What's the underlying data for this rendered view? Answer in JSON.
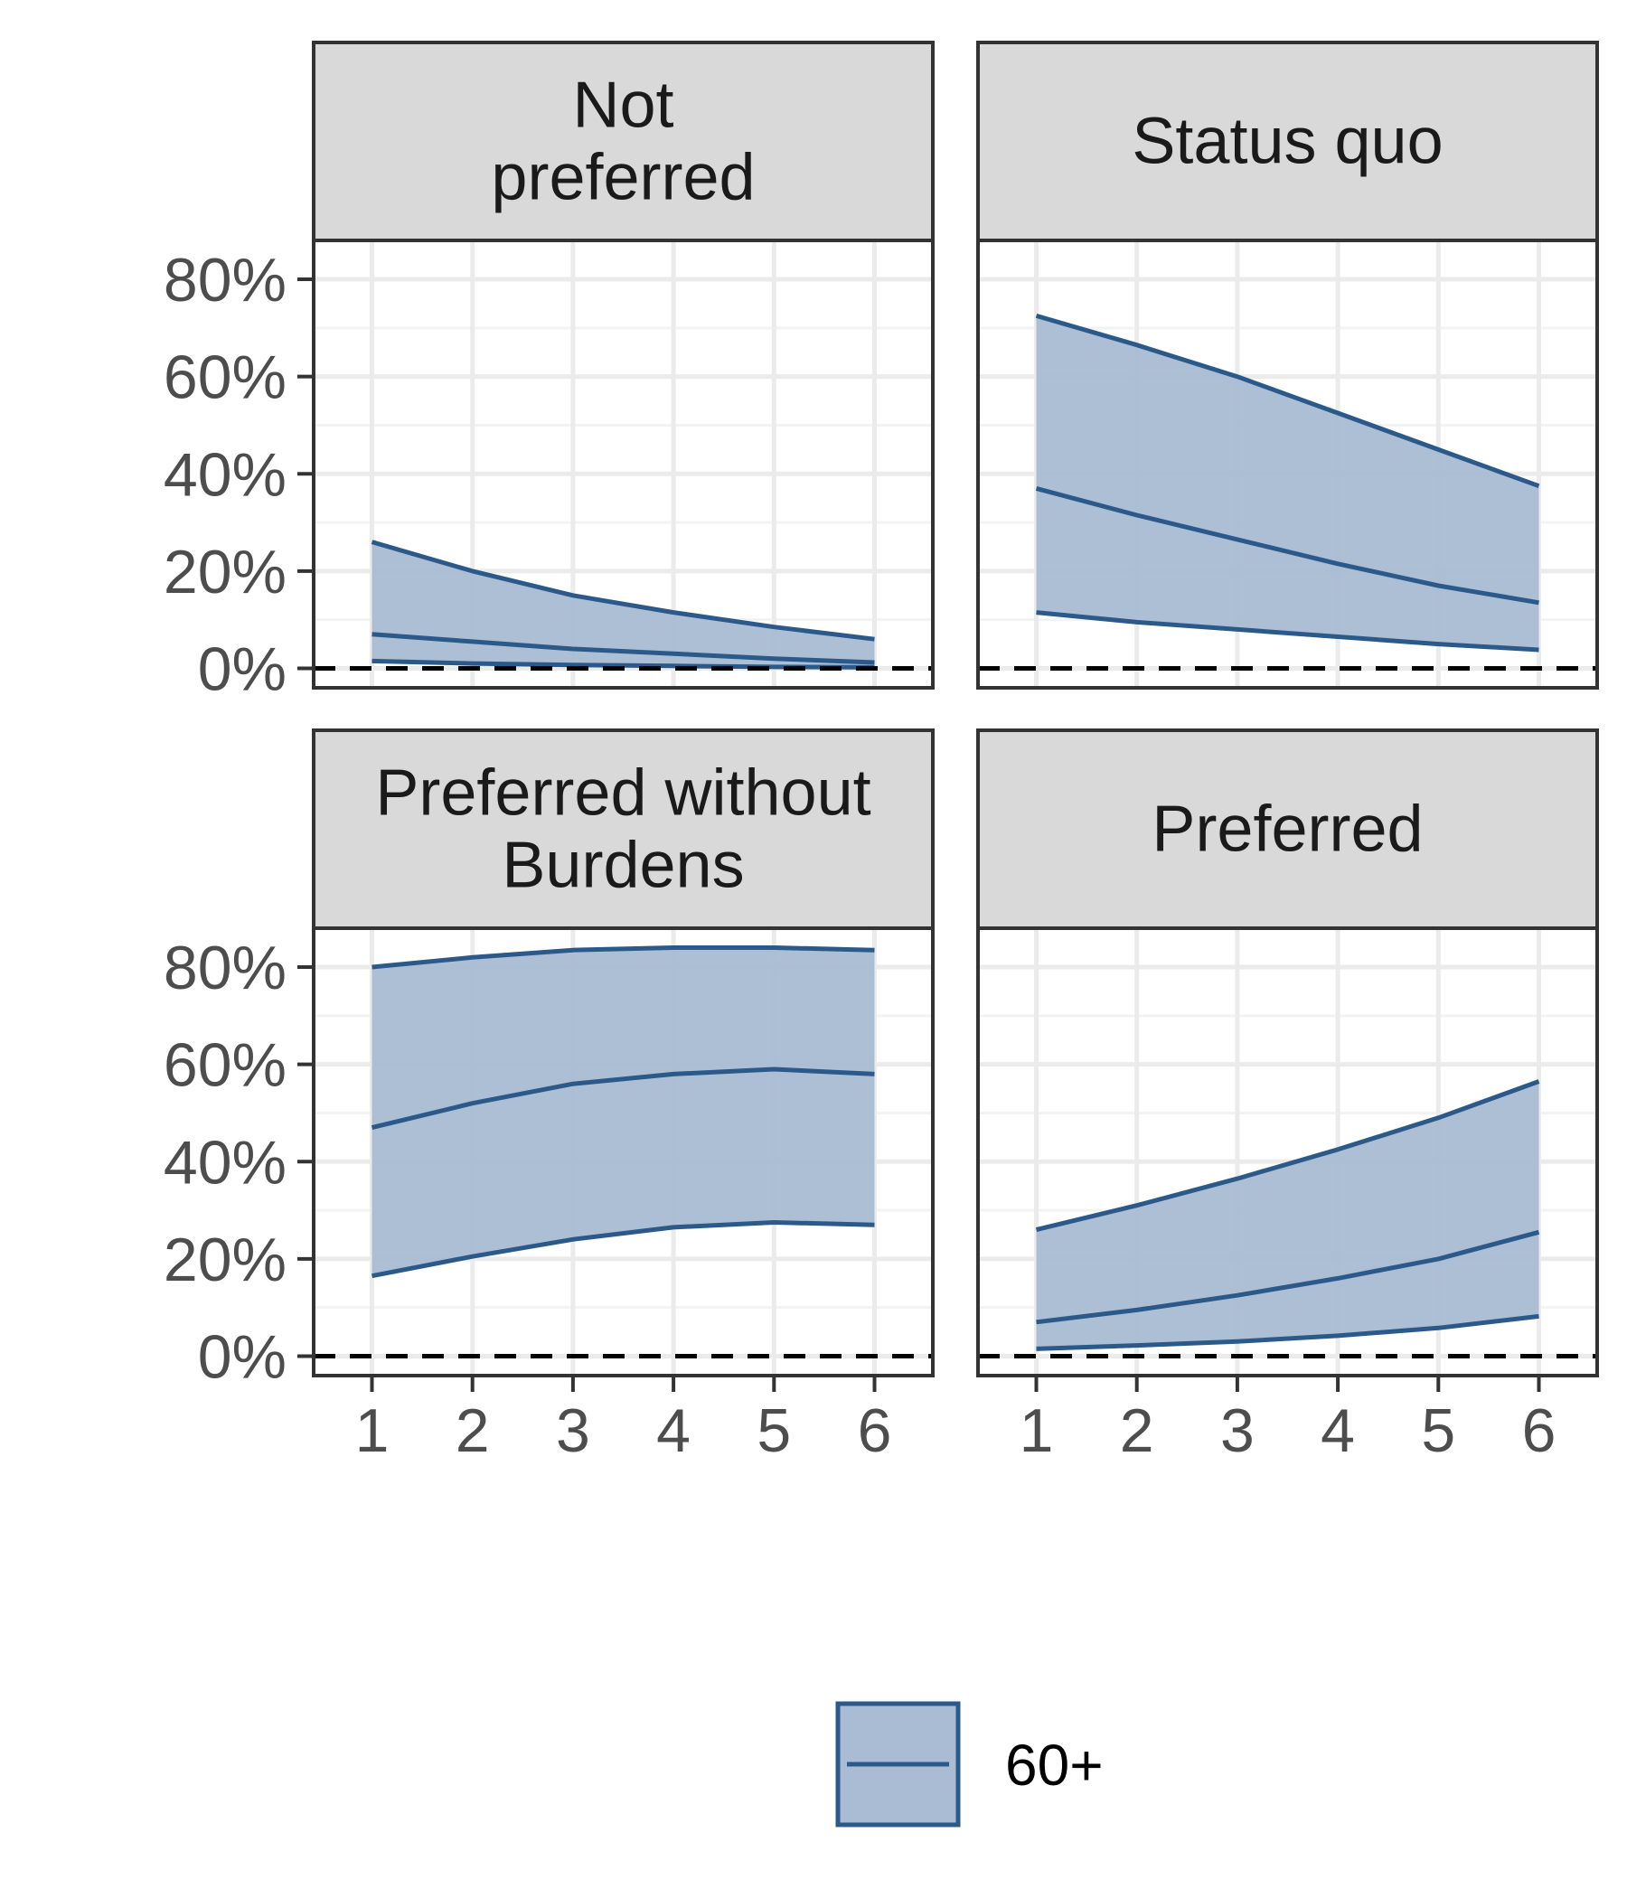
{
  "chart_data": {
    "type": "area",
    "facets": [
      "Not\npreferred",
      "Status quo",
      "Preferred without\nBurdens",
      "Preferred"
    ],
    "x": [
      1,
      2,
      3,
      4,
      5,
      6
    ],
    "x_ticks": [
      "1",
      "2",
      "3",
      "4",
      "5",
      "6"
    ],
    "ylim": [
      -0.04,
      0.88
    ],
    "y_ticks": [
      {
        "value": 0,
        "label": "0%"
      },
      {
        "value": 0.2,
        "label": "20%"
      },
      {
        "value": 0.4,
        "label": "40%"
      },
      {
        "value": 0.6,
        "label": "60%"
      },
      {
        "value": 0.8,
        "label": "80%"
      }
    ],
    "reference_line": {
      "y": 0,
      "style": "dashed"
    },
    "grid": true,
    "legend": {
      "position": "bottom",
      "entries": [
        "60+"
      ]
    },
    "series": [
      {
        "name": "60+",
        "panels": [
          {
            "facet": "Not\npreferred",
            "estimate": [
              0.07,
              0.055,
              0.04,
              0.03,
              0.02,
              0.012
            ],
            "lower": [
              0.015,
              0.01,
              0.007,
              0.005,
              0.003,
              0.002
            ],
            "upper": [
              0.26,
              0.2,
              0.15,
              0.115,
              0.085,
              0.06
            ]
          },
          {
            "facet": "Status quo",
            "estimate": [
              0.37,
              0.315,
              0.265,
              0.215,
              0.17,
              0.135
            ],
            "lower": [
              0.115,
              0.095,
              0.08,
              0.065,
              0.05,
              0.038
            ],
            "upper": [
              0.725,
              0.665,
              0.6,
              0.525,
              0.45,
              0.375
            ]
          },
          {
            "facet": "Preferred without\nBurdens",
            "estimate": [
              0.47,
              0.52,
              0.56,
              0.58,
              0.59,
              0.58
            ],
            "lower": [
              0.165,
              0.205,
              0.24,
              0.265,
              0.275,
              0.27
            ],
            "upper": [
              0.8,
              0.82,
              0.835,
              0.84,
              0.84,
              0.835
            ]
          },
          {
            "facet": "Preferred",
            "estimate": [
              0.07,
              0.095,
              0.125,
              0.16,
              0.2,
              0.255
            ],
            "lower": [
              0.015,
              0.022,
              0.03,
              0.042,
              0.058,
              0.082
            ],
            "upper": [
              0.26,
              0.31,
              0.365,
              0.425,
              0.49,
              0.565
            ]
          }
        ]
      }
    ]
  },
  "colors": {
    "series_line": "#2b5a8a",
    "ribbon_fill": "#a9bcd3",
    "strip_fill": "#d9d9d9",
    "panel_border": "#333333",
    "grid_major": "#ebebeb",
    "grid_minor": "#f3f3f3",
    "reference_line": "#000000"
  }
}
